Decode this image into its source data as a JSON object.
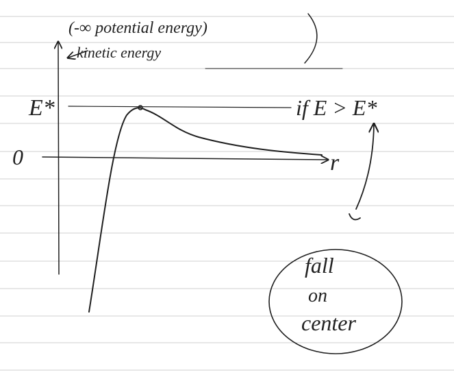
{
  "annotations": {
    "potential": "(-∞ potential energy)",
    "kinetic": "kinetic energy"
  },
  "axes": {
    "energy_level": "E*",
    "zero": "0",
    "x_axis": "r"
  },
  "condition": "if E > E*",
  "outcome": {
    "line1": "fall",
    "line2": "on",
    "line3": "center"
  }
}
